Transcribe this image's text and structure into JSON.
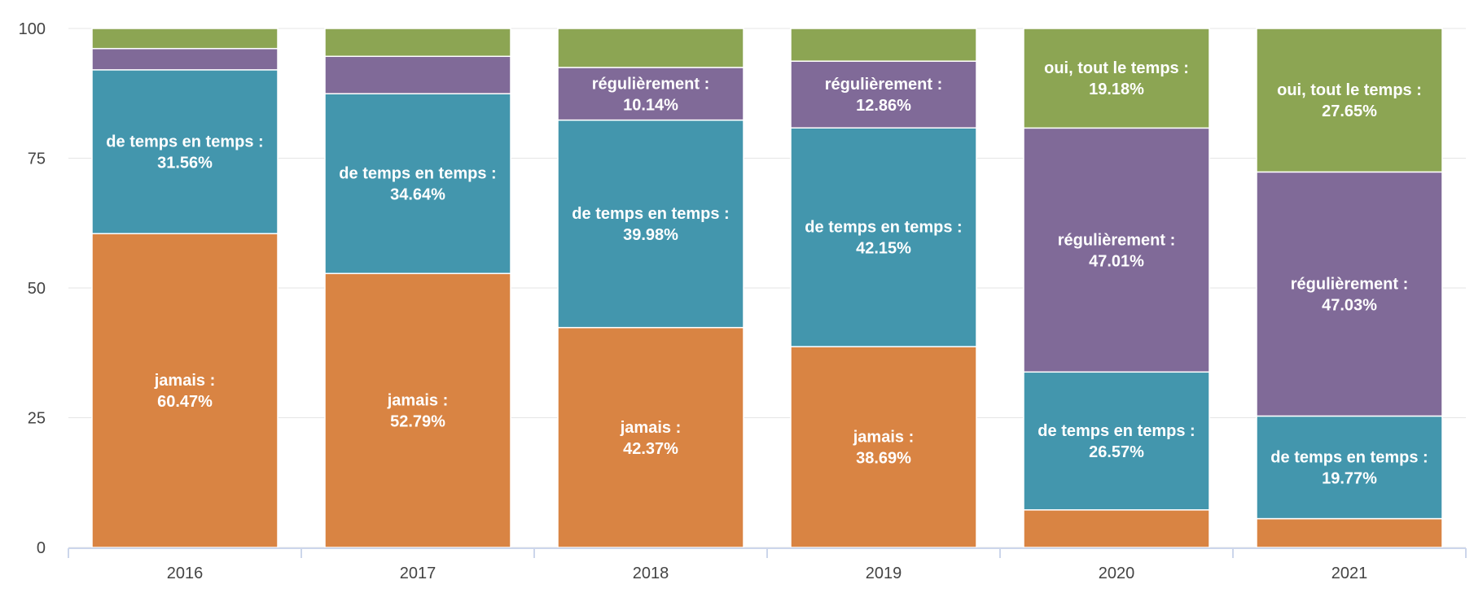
{
  "chart_data": {
    "type": "bar",
    "stacked": true,
    "categories": [
      "2016",
      "2017",
      "2018",
      "2019",
      "2020",
      "2021"
    ],
    "ylim": [
      0,
      100
    ],
    "yticks": [
      "0",
      "25",
      "50",
      "75",
      "100"
    ],
    "grid": true,
    "legend": "none",
    "series": [
      {
        "key": "jamais",
        "name": "jamais",
        "color": "#d98443",
        "values": [
          60.47,
          52.79,
          42.37,
          38.69,
          7.24,
          5.55
        ],
        "labels": [
          "jamais :\n60.47%",
          "jamais :\n52.79%",
          "jamais :\n42.37%",
          "jamais :\n38.69%",
          "",
          ""
        ]
      },
      {
        "key": "de_temps_en_temps",
        "name": "de temps en temps",
        "color": "#4396ad",
        "values": [
          31.56,
          34.64,
          39.98,
          42.15,
          26.57,
          19.77
        ],
        "labels": [
          "de temps en temps :\n31.56%",
          "de temps en temps :\n34.64%",
          "de temps en temps :\n39.98%",
          "de temps en temps :\n42.15%",
          "de temps en temps :\n26.57%",
          "de temps en temps :\n19.77%"
        ]
      },
      {
        "key": "regulierement",
        "name": "régulièrement",
        "color": "#806a98",
        "values": [
          4.1,
          7.2,
          10.14,
          12.86,
          47.01,
          47.03
        ],
        "labels": [
          "",
          "",
          "régulièrement :\n10.14%",
          "régulièrement :\n12.86%",
          "régulièrement :\n47.01%",
          "régulièrement :\n47.03%"
        ]
      },
      {
        "key": "oui_tout_le_temps",
        "name": "oui, tout le temps",
        "color": "#8ca553",
        "values": [
          3.87,
          5.37,
          7.51,
          6.3,
          19.18,
          27.65
        ],
        "labels": [
          "",
          "",
          "",
          "",
          "oui, tout le temps :\n19.18%",
          "oui, tout le temps :\n27.65%"
        ]
      }
    ]
  }
}
